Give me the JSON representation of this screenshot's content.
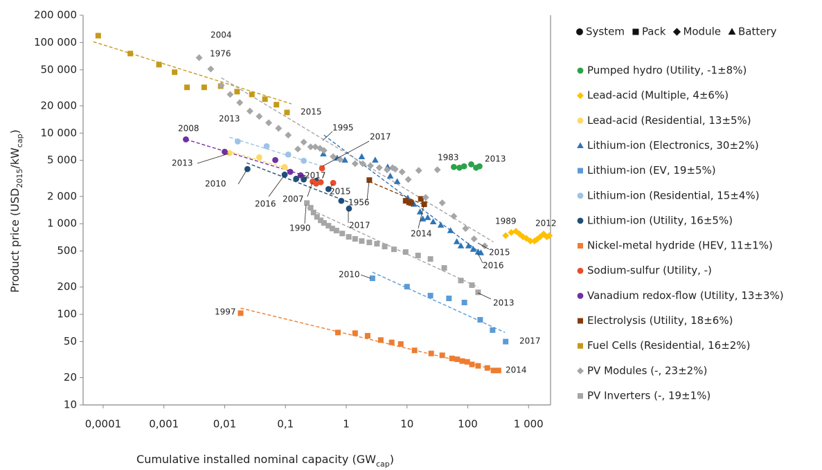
{
  "chart_data": {
    "type": "scatter",
    "xlabel": [
      {
        "text": "Cumulative installed nominal capacity (GW"
      },
      {
        "text": "cap",
        "sub": true
      },
      {
        "text": ")"
      }
    ],
    "ylabel": [
      {
        "text": "Product price (USD"
      },
      {
        "text": "2015",
        "sub": true
      },
      {
        "text": "/kW"
      },
      {
        "text": "cap",
        "sub": true
      },
      {
        "text": ")"
      }
    ],
    "xscale": "log",
    "yscale": "log",
    "xlim": [
      4.68e-05,
      2300
    ],
    "ylim": [
      10,
      200000
    ],
    "xticks": [
      {
        "value": 0.0001,
        "label": "0,0001"
      },
      {
        "value": 0.001,
        "label": "0,001"
      },
      {
        "value": 0.01,
        "label": "0,01"
      },
      {
        "value": 0.1,
        "label": "0,1"
      },
      1,
      10,
      100,
      {
        "value": 1000,
        "label": "1 000"
      }
    ],
    "yticks": [
      10,
      20,
      50,
      100,
      200,
      500,
      {
        "value": 1000,
        "label": "1 000"
      },
      {
        "value": 2000,
        "label": "2 000"
      },
      {
        "value": 5000,
        "label": "5 000"
      },
      {
        "value": 10000,
        "label": "10 000"
      },
      {
        "value": 20000,
        "label": "20 000"
      },
      {
        "value": 50000,
        "label": "50 000"
      },
      {
        "value": 100000,
        "label": "100 000"
      },
      {
        "value": 200000,
        "label": "200 000"
      }
    ],
    "marker_legend": [
      {
        "label": "System",
        "marker": "circle"
      },
      {
        "label": "Pack",
        "marker": "square"
      },
      {
        "label": "Module",
        "marker": "diamond"
      },
      {
        "label": "Battery",
        "marker": "triangle"
      }
    ],
    "series": [
      {
        "name": "Pumped hydro (Utility, -1±8%)",
        "color": "#2ca24a",
        "marker": "circle",
        "x": [
          59,
          73,
          87,
          114,
          137,
          156
        ],
        "values": [
          4230,
          4150,
          4300,
          4520,
          4150,
          4300
        ]
      },
      {
        "name": "Lead-acid (Multiple, 4±6%)",
        "color": "#ffc000",
        "marker": "diamond",
        "x": [
          420,
          520,
          620,
          710,
          810,
          920,
          1070,
          1250,
          1370,
          1550,
          1770,
          2000,
          2200
        ],
        "values": [
          740,
          800,
          825,
          770,
          716,
          690,
          645,
          645,
          670,
          716,
          770,
          716,
          740
        ]
      },
      {
        "name": "Lead-acid (Residential, 13±5%)",
        "color": "#ffd966",
        "marker": "circle",
        "x": [
          0.012,
          0.037,
          0.097
        ],
        "values": [
          6010,
          5400,
          4230
        ],
        "fit": {
          "x": [
            0.0105,
            0.127
          ],
          "y": [
            6450,
            3940
          ]
        }
      },
      {
        "name": "Lithium-ion (Electronics, 30±2%)",
        "color": "#2e75b6",
        "marker": "triangle",
        "x": [
          0.42,
          0.71,
          0.95,
          1.8,
          3.0,
          4.8,
          5.3,
          6.9,
          10.3,
          13,
          16.4,
          18.2,
          21.9,
          27,
          36,
          52,
          66,
          77,
          103,
          123,
          148,
          164
        ],
        "values": [
          5900,
          5300,
          5040,
          5490,
          5040,
          4230,
          3360,
          2920,
          1920,
          1640,
          1350,
          1130,
          1170,
          1050,
          965,
          840,
          634,
          570,
          570,
          522,
          487,
          478
        ],
        "fit": {
          "x": [
            0.43,
            178
          ],
          "y": [
            9500,
            454
          ]
        }
      },
      {
        "name": "Lithium-ion (EV, 19±5%)",
        "color": "#5b9bd5",
        "marker": "square",
        "x": [
          2.7,
          10,
          24.3,
          49,
          88,
          160,
          256,
          420
        ],
        "values": [
          250,
          202,
          161,
          150,
          135,
          87,
          67,
          50
        ],
        "fit": {
          "x": [
            2.7,
            410
          ],
          "y": [
            292,
            63
          ]
        }
      },
      {
        "name": "Lithium-ion (Residential, 15±4%)",
        "color": "#9dc3e6",
        "marker": "circle",
        "x": [
          0.0164,
          0.049,
          0.111,
          0.2
        ],
        "values": [
          8090,
          7160,
          5800,
          4950
        ],
        "fit": {
          "x": [
            0.012,
            0.41
          ],
          "y": [
            9000,
            4300
          ]
        }
      },
      {
        "name": "Lithium-ion (Utility, 16±5%)",
        "color": "#1f4e79",
        "marker": "circle",
        "x": [
          0.0237,
          0.097,
          0.15,
          0.2,
          0.32,
          0.51,
          0.83,
          1.11
        ],
        "values": [
          4010,
          3480,
          3130,
          3080,
          2970,
          2410,
          1790,
          1470
        ],
        "fit": {
          "x": [
            0.023,
            1.17
          ],
          "y": [
            4700,
            1700
          ]
        }
      },
      {
        "name": "Nickel-metal hydride (HEV, 11±1%)",
        "color": "#ed7d31",
        "marker": "square",
        "x": [
          0.0183,
          0.73,
          1.4,
          2.25,
          3.7,
          5.6,
          7.9,
          13.3,
          25,
          38,
          55,
          67,
          81,
          98,
          117,
          148,
          210,
          265,
          320
        ],
        "values": [
          103,
          63,
          62,
          58,
          52,
          49,
          47,
          40,
          37,
          35.3,
          32.6,
          31.9,
          30.5,
          29.9,
          28,
          27,
          25.6,
          24,
          24
        ],
        "fit": {
          "x": [
            0.0183,
            320
          ],
          "y": [
            117,
            24
          ]
        }
      },
      {
        "name": "Sodium-sulfur (Utility, -)",
        "color": "#e84d2c",
        "marker": "circle",
        "x": [
          0.4,
          0.28,
          0.32,
          0.38,
          0.61
        ],
        "values": [
          4080,
          2920,
          2770,
          2870,
          2820
        ]
      },
      {
        "name": "Vanadium redox-flow (Utility, 13±3%)",
        "color": "#7030a0",
        "marker": "circle",
        "x": [
          0.0023,
          0.01,
          0.068,
          0.12,
          0.178
        ],
        "values": [
          8530,
          6220,
          5040,
          3740,
          3420
        ],
        "fit": {
          "x": [
            0.0023,
            0.24
          ],
          "y": [
            8530,
            3300
          ]
        }
      },
      {
        "name": "Electrolysis (Utility, 18±6%)",
        "color": "#843c0c",
        "marker": "square",
        "x": [
          2.4,
          9.5,
          10.8,
          11.7,
          16.9,
          19.2
        ],
        "values": [
          3030,
          1790,
          1720,
          1690,
          1880,
          1640
        ],
        "fit": {
          "x": [
            2.4,
            20.8
          ],
          "y": [
            2920,
            1580
          ]
        }
      },
      {
        "name": "Fuel Cells (Residential, 16±2%)",
        "color": "#c49a1a",
        "marker": "square",
        "x": [
          8.3e-05,
          0.00028,
          0.00083,
          0.0015,
          0.0024,
          0.0046,
          0.0086,
          0.016,
          0.028,
          0.046,
          0.071,
          0.106
        ],
        "values": [
          119000,
          75500,
          57000,
          47000,
          32000,
          32000,
          33000,
          28700,
          26700,
          23700,
          20600,
          16900
        ],
        "fit": {
          "x": [
            6.9e-05,
            0.126
          ],
          "y": [
            102000,
            21000
          ]
        }
      },
      {
        "name": "PV Modules (-, 23±2%)",
        "color": "#a6a6a6",
        "marker": "diamond",
        "x": [
          0.0038,
          0.0059,
          0.0088,
          0.0123,
          0.0177,
          0.026,
          0.037,
          0.053,
          0.077,
          0.111,
          0.16,
          0.2,
          0.26,
          0.31,
          0.37,
          0.43,
          0.61,
          0.79,
          1.4,
          1.87,
          2.5,
          3.5,
          4.7,
          5.8,
          6.4,
          8.3,
          10.5,
          15.6,
          31.6,
          20.3,
          38,
          59,
          92,
          127,
          190
        ],
        "values": [
          68000,
          51000,
          33600,
          26700,
          21700,
          17500,
          15300,
          13000,
          11300,
          9500,
          6670,
          7950,
          7050,
          7050,
          6800,
          6440,
          5500,
          5120,
          4600,
          4600,
          4370,
          4150,
          3940,
          4150,
          4000,
          3730,
          3080,
          3870,
          3940,
          1950,
          1700,
          1210,
          885,
          680,
          570
        ],
        "fit": {
          "x": [
            0.0088,
            263
          ],
          "y": [
            40800,
            630
          ]
        }
      },
      {
        "name": "PV Inverters (-, 19±1%)",
        "color": "#a6a6a6",
        "marker": "square",
        "x": [
          0.225,
          0.26,
          0.29,
          0.33,
          0.38,
          0.43,
          0.51,
          0.59,
          0.69,
          0.86,
          1.1,
          1.4,
          1.8,
          2.4,
          3.2,
          4.3,
          6.1,
          9.5,
          15.2,
          24.3,
          41,
          77,
          117,
          148
        ],
        "values": [
          1690,
          1500,
          1330,
          1190,
          1090,
          1020,
          950,
          885,
          840,
          780,
          716,
          680,
          644,
          622,
          601,
          560,
          522,
          487,
          446,
          408,
          325,
          236,
          210,
          175
        ],
        "fit": {
          "x": [
            0.225,
            148
          ],
          "y": [
            1500,
            200
          ]
        }
      }
    ],
    "annotations": [
      "2004",
      "2015",
      "1976",
      "2008",
      "2013",
      "1995",
      "2017",
      "2013",
      "2010",
      "2017",
      "2016",
      "2007",
      "2015",
      "1956",
      "1990",
      "2017",
      "2014",
      "1983",
      "2013",
      "1989",
      "2012",
      "2015",
      "2016",
      "2010",
      "2013",
      "2017",
      "1997",
      "2014"
    ]
  }
}
